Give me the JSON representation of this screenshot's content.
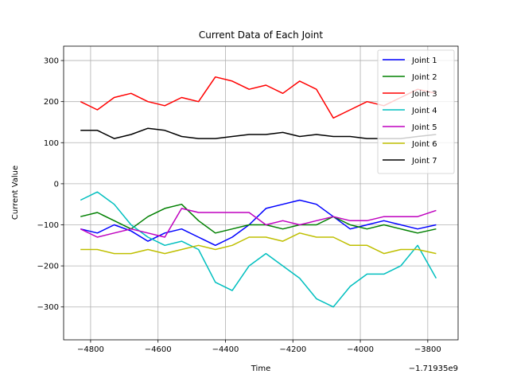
{
  "chart_data": {
    "type": "line",
    "title": "Current Data of Each Joint",
    "xlabel": "Time",
    "ylabel": "Current Value",
    "x_offset_label": "−1.71935e9",
    "xlim": [
      -4880,
      -3710
    ],
    "ylim": [
      -380,
      335
    ],
    "x_ticks": [
      -4800,
      -4600,
      -4400,
      -4200,
      -4000,
      -3800
    ],
    "x_tick_labels": [
      "−4800",
      "−4600",
      "−4400",
      "−4200",
      "−4000",
      "−3800"
    ],
    "y_ticks": [
      -300,
      -200,
      -100,
      0,
      100,
      200,
      300
    ],
    "y_tick_labels": [
      "−300",
      "−200",
      "−100",
      "0",
      "100",
      "200",
      "300"
    ],
    "grid": true,
    "legend_position": "top-right",
    "x": [
      -4830,
      -4780,
      -4730,
      -4680,
      -4630,
      -4580,
      -4530,
      -4480,
      -4430,
      -4380,
      -4330,
      -4280,
      -4230,
      -4180,
      -4130,
      -4080,
      -4030,
      -3980,
      -3930,
      -3880,
      -3830,
      -3775
    ],
    "series": [
      {
        "name": "Joint 1",
        "color": "#0000ff",
        "values": [
          -110,
          -120,
          -100,
          -115,
          -140,
          -120,
          -110,
          -130,
          -150,
          -130,
          -100,
          -60,
          -50,
          -40,
          -50,
          -80,
          -110,
          -100,
          -90,
          -100,
          -110,
          -100
        ]
      },
      {
        "name": "Joint 2",
        "color": "#008000",
        "values": [
          -80,
          -70,
          -90,
          -110,
          -80,
          -60,
          -50,
          -90,
          -120,
          -110,
          -100,
          -100,
          -110,
          -100,
          -100,
          -80,
          -100,
          -110,
          -100,
          -110,
          -120,
          -110
        ]
      },
      {
        "name": "Joint 3",
        "color": "#ff0000",
        "values": [
          200,
          180,
          210,
          220,
          200,
          190,
          210,
          200,
          260,
          250,
          230,
          240,
          220,
          250,
          230,
          160,
          180,
          200,
          190,
          210,
          230,
          220
        ]
      },
      {
        "name": "Joint 4",
        "color": "#00bfbf",
        "values": [
          -40,
          -20,
          -50,
          -100,
          -130,
          -150,
          -140,
          -160,
          -240,
          -260,
          -200,
          -170,
          -200,
          -230,
          -280,
          -300,
          -250,
          -220,
          -220,
          -200,
          -150,
          -230
        ]
      },
      {
        "name": "Joint 5",
        "color": "#bf00bf",
        "values": [
          -110,
          -130,
          -120,
          -110,
          -120,
          -130,
          -60,
          -70,
          -70,
          -70,
          -70,
          -100,
          -90,
          -100,
          -90,
          -80,
          -90,
          -90,
          -80,
          -80,
          -80,
          -65
        ]
      },
      {
        "name": "Joint 6",
        "color": "#bfbf00",
        "values": [
          -160,
          -160,
          -170,
          -170,
          -160,
          -170,
          -160,
          -150,
          -160,
          -150,
          -130,
          -130,
          -140,
          -120,
          -130,
          -130,
          -150,
          -150,
          -170,
          -160,
          -160,
          -170
        ]
      },
      {
        "name": "Joint 7",
        "color": "#000000",
        "values": [
          130,
          130,
          110,
          120,
          135,
          130,
          115,
          110,
          110,
          115,
          120,
          120,
          125,
          115,
          120,
          115,
          115,
          110,
          110,
          110,
          115,
          120
        ]
      }
    ]
  }
}
